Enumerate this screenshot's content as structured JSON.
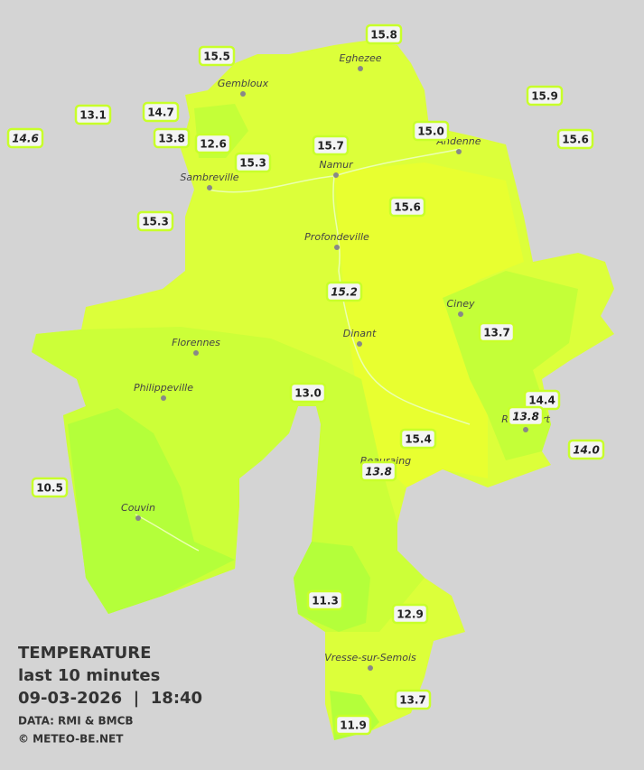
{
  "legend": {
    "title": "TEMPERATURE",
    "subtitle": "last 10 minutes",
    "datetime": "09-03-2026  |  18:40",
    "source": "DATA: RMI & BMCB",
    "copyright": "© METEO-BE.NET"
  },
  "cities": [
    "Eghezee",
    "Gembloux",
    "Andenne",
    "Namur",
    "Sambreville",
    "Profondeville",
    "Ciney",
    "Dinant",
    "Florennes",
    "Philippeville",
    "Beauraing",
    "Rochefort",
    "Couvin",
    "Vresse-sur-Semois"
  ],
  "stations": [
    {
      "label": "15.8",
      "italic": false
    },
    {
      "label": "15.5",
      "italic": false
    },
    {
      "label": "13.1",
      "italic": false
    },
    {
      "label": "14.7",
      "italic": false
    },
    {
      "label": "14.6",
      "italic": true
    },
    {
      "label": "13.8",
      "italic": false
    },
    {
      "label": "12.6",
      "italic": false
    },
    {
      "label": "15.3",
      "italic": false
    },
    {
      "label": "15.7",
      "italic": false
    },
    {
      "label": "15.0",
      "italic": false
    },
    {
      "label": "15.9",
      "italic": false
    },
    {
      "label": "15.6",
      "italic": false
    },
    {
      "label": "15.3",
      "italic": false
    },
    {
      "label": "15.6",
      "italic": false
    },
    {
      "label": "15.2",
      "italic": true
    },
    {
      "label": "13.7",
      "italic": false
    },
    {
      "label": "13.0",
      "italic": false
    },
    {
      "label": "14.4",
      "italic": false
    },
    {
      "label": "13.8",
      "italic": true
    },
    {
      "label": "14.0",
      "italic": true
    },
    {
      "label": "15.4",
      "italic": false
    },
    {
      "label": "13.8",
      "italic": true
    },
    {
      "label": "10.5",
      "italic": false
    },
    {
      "label": "11.3",
      "italic": false
    },
    {
      "label": "12.9",
      "italic": false
    },
    {
      "label": "13.7",
      "italic": false
    },
    {
      "label": "11.9",
      "italic": false
    }
  ]
}
